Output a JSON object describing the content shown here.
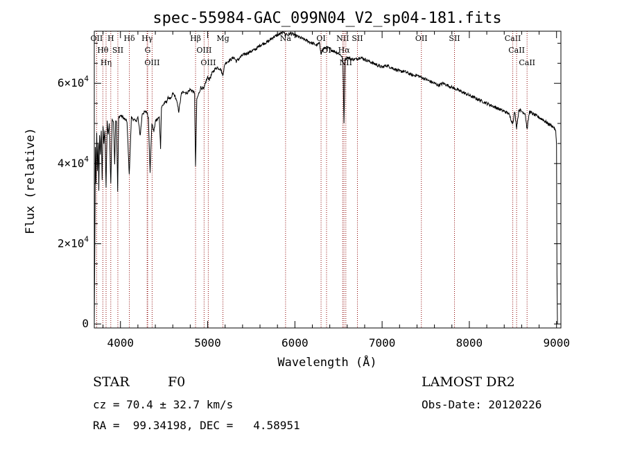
{
  "chart_data": {
    "type": "line",
    "title": "spec-55984-GAC_099N04_V2_sp04-181.fits",
    "xlabel": "Wavelength (Å)",
    "ylabel": "Flux (relative)",
    "xlim": [
      3700,
      9050
    ],
    "ylim": [
      -1000,
      73000
    ],
    "x_ticks": [
      4000,
      5000,
      6000,
      7000,
      8000,
      9000
    ],
    "x_tick_labels": [
      "4000",
      "5000",
      "6000",
      "7000",
      "8000",
      "9000"
    ],
    "y_ticks": [
      0,
      20000,
      40000,
      60000
    ],
    "y_tick_labels": [
      {
        "mantissa": "0",
        "exponent": ""
      },
      {
        "mantissa": "2×10",
        "exponent": "4"
      },
      {
        "mantissa": "4×10",
        "exponent": "4"
      },
      {
        "mantissa": "6×10",
        "exponent": "4"
      }
    ],
    "grid": false,
    "series": [
      {
        "color": "#000000",
        "noise": 400,
        "points": [
          [
            3700,
            0
          ],
          [
            3705,
            15000
          ],
          [
            3712,
            44000
          ],
          [
            3720,
            35000
          ],
          [
            3728,
            48000
          ],
          [
            3736,
            38000
          ],
          [
            3745,
            45000
          ],
          [
            3752,
            33000
          ],
          [
            3760,
            47000
          ],
          [
            3770,
            42000
          ],
          [
            3780,
            48500
          ],
          [
            3790,
            36000
          ],
          [
            3800,
            49000
          ],
          [
            3810,
            45000
          ],
          [
            3822,
            48500
          ],
          [
            3835,
            34000
          ],
          [
            3848,
            50500
          ],
          [
            3860,
            47000
          ],
          [
            3872,
            50000
          ],
          [
            3889,
            35000
          ],
          [
            3905,
            51000
          ],
          [
            3920,
            50500
          ],
          [
            3934,
            40000
          ],
          [
            3945,
            51000
          ],
          [
            3955,
            50500
          ],
          [
            3968,
            33000
          ],
          [
            3980,
            51500
          ],
          [
            4000,
            52000
          ],
          [
            4030,
            51500
          ],
          [
            4050,
            51000
          ],
          [
            4075,
            50500
          ],
          [
            4101,
            37000
          ],
          [
            4125,
            51500
          ],
          [
            4150,
            51000
          ],
          [
            4175,
            50500
          ],
          [
            4200,
            51500
          ],
          [
            4226,
            47000
          ],
          [
            4250,
            52500
          ],
          [
            4300,
            53000
          ],
          [
            4320,
            51500
          ],
          [
            4340,
            38000
          ],
          [
            4360,
            50000
          ],
          [
            4383,
            48000
          ],
          [
            4400,
            50500
          ],
          [
            4420,
            51000
          ],
          [
            4445,
            51500
          ],
          [
            4460,
            44000
          ],
          [
            4470,
            54000
          ],
          [
            4500,
            55000
          ],
          [
            4530,
            55500
          ],
          [
            4550,
            56500
          ],
          [
            4580,
            56000
          ],
          [
            4600,
            57500
          ],
          [
            4620,
            57000
          ],
          [
            4640,
            56000
          ],
          [
            4668,
            53000
          ],
          [
            4700,
            57500
          ],
          [
            4730,
            58000
          ],
          [
            4760,
            57500
          ],
          [
            4800,
            58500
          ],
          [
            4830,
            58000
          ],
          [
            4850,
            57500
          ],
          [
            4861,
            39000
          ],
          [
            4875,
            56000
          ],
          [
            4900,
            57500
          ],
          [
            4920,
            59000
          ],
          [
            4957,
            58500
          ],
          [
            4980,
            60500
          ],
          [
            5000,
            61500
          ],
          [
            5020,
            61000
          ],
          [
            5050,
            62500
          ],
          [
            5080,
            63500
          ],
          [
            5110,
            64000
          ],
          [
            5150,
            63500
          ],
          [
            5172,
            62000
          ],
          [
            5200,
            65000
          ],
          [
            5270,
            66000
          ],
          [
            5300,
            66500
          ],
          [
            5328,
            65500
          ],
          [
            5400,
            67000
          ],
          [
            5450,
            67500
          ],
          [
            5500,
            68000
          ],
          [
            5550,
            68500
          ],
          [
            5600,
            69500
          ],
          [
            5650,
            70000
          ],
          [
            5700,
            70500
          ],
          [
            5750,
            71500
          ],
          [
            5800,
            72000
          ],
          [
            5850,
            72500
          ],
          [
            5880,
            73000
          ],
          [
            5890,
            71500
          ],
          [
            5896,
            72500
          ],
          [
            5920,
            72000
          ],
          [
            5950,
            72500
          ],
          [
            6000,
            72000
          ],
          [
            6050,
            71500
          ],
          [
            6100,
            71000
          ],
          [
            6150,
            70500
          ],
          [
            6200,
            70000
          ],
          [
            6250,
            69500
          ],
          [
            6280,
            70000
          ],
          [
            6300,
            67500
          ],
          [
            6320,
            68500
          ],
          [
            6363,
            69000
          ],
          [
            6400,
            68500
          ],
          [
            6450,
            68000
          ],
          [
            6500,
            67500
          ],
          [
            6530,
            67000
          ],
          [
            6550,
            66000
          ],
          [
            6563,
            50000
          ],
          [
            6575,
            66000
          ],
          [
            6600,
            66500
          ],
          [
            6650,
            66000
          ],
          [
            6700,
            66000
          ],
          [
            6750,
            66500
          ],
          [
            6800,
            66000
          ],
          [
            6850,
            65500
          ],
          [
            6900,
            65000
          ],
          [
            6950,
            64500
          ],
          [
            7000,
            64000
          ],
          [
            7050,
            64500
          ],
          [
            7100,
            64000
          ],
          [
            7150,
            63500
          ],
          [
            7200,
            63000
          ],
          [
            7250,
            63000
          ],
          [
            7300,
            62500
          ],
          [
            7350,
            62000
          ],
          [
            7400,
            62000
          ],
          [
            7450,
            61500
          ],
          [
            7500,
            61000
          ],
          [
            7550,
            60500
          ],
          [
            7600,
            60000
          ],
          [
            7650,
            59500
          ],
          [
            7700,
            60000
          ],
          [
            7750,
            59500
          ],
          [
            7800,
            59000
          ],
          [
            7850,
            58500
          ],
          [
            7900,
            58000
          ],
          [
            7950,
            57500
          ],
          [
            8000,
            57000
          ],
          [
            8050,
            56500
          ],
          [
            8100,
            56000
          ],
          [
            8150,
            55500
          ],
          [
            8200,
            55000
          ],
          [
            8250,
            54500
          ],
          [
            8300,
            54000
          ],
          [
            8350,
            53500
          ],
          [
            8400,
            53000
          ],
          [
            8450,
            52500
          ],
          [
            8498,
            50000
          ],
          [
            8520,
            53000
          ],
          [
            8542,
            49000
          ],
          [
            8570,
            53500
          ],
          [
            8600,
            53000
          ],
          [
            8640,
            52500
          ],
          [
            8662,
            48500
          ],
          [
            8690,
            53000
          ],
          [
            8720,
            52500
          ],
          [
            8760,
            52000
          ],
          [
            8800,
            51500
          ],
          [
            8840,
            51000
          ],
          [
            8870,
            50500
          ],
          [
            8900,
            50000
          ],
          [
            8940,
            49500
          ],
          [
            8970,
            49000
          ],
          [
            8990,
            48000
          ],
          [
            9000,
            45000
          ],
          [
            9005,
            12000
          ],
          [
            9010,
            0
          ]
        ]
      }
    ],
    "lines": [
      {
        "wavelength": 3727,
        "label": "OII"
      },
      {
        "wavelength": 3798,
        "label": "Hθ"
      },
      {
        "wavelength": 3835,
        "label": "Hη"
      },
      {
        "wavelength": 3889,
        "label": "H"
      },
      {
        "wavelength": 3970,
        "label": "SII"
      },
      {
        "wavelength": 4102,
        "label": "Hδ"
      },
      {
        "wavelength": 4306,
        "label": "Hγ"
      },
      {
        "wavelength": 4312,
        "label": "G"
      },
      {
        "wavelength": 4363,
        "label": "OIII"
      },
      {
        "wavelength": 4861,
        "label": "Hβ"
      },
      {
        "wavelength": 4959,
        "label": "OIII"
      },
      {
        "wavelength": 5007,
        "label": "OIII"
      },
      {
        "wavelength": 5175,
        "label": "Mg"
      },
      {
        "wavelength": 5893,
        "label": "Na"
      },
      {
        "wavelength": 6300,
        "label": "OI"
      },
      {
        "wavelength": 6363,
        "label": "OI"
      },
      {
        "wavelength": 6548,
        "label": "NII"
      },
      {
        "wavelength": 6563,
        "label": "Hα"
      },
      {
        "wavelength": 6584,
        "label": "NII"
      },
      {
        "wavelength": 6717,
        "label": "SII"
      },
      {
        "wavelength": 7450,
        "label": "OII"
      },
      {
        "wavelength": 7830,
        "label": "SII"
      },
      {
        "wavelength": 8498,
        "label": "CaII"
      },
      {
        "wavelength": 8542,
        "label": "CaII"
      },
      {
        "wavelength": 8662,
        "label": "CaII"
      }
    ],
    "line_color": "#8b0000"
  },
  "info": {
    "class_label": "STAR",
    "subclass_label": "F0",
    "survey_label": "LAMOST DR2",
    "cz_text": "cz = 70.4 ± 32.7 km/s",
    "obs_date_text": "Obs-Date: 20120226",
    "radec_text": "RA =  99.34198, DEC =   4.58951"
  }
}
